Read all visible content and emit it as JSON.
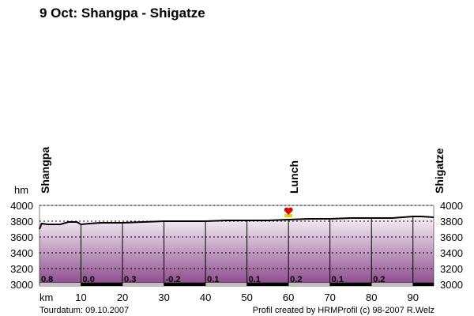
{
  "chart_data": {
    "type": "area",
    "title": "9 Oct: Shangpa - Shigatze",
    "y_label": "hm",
    "x_label": "km",
    "x": [
      0,
      0.5,
      2,
      5,
      7,
      9,
      10,
      12,
      15,
      20,
      25,
      30,
      35,
      40,
      45,
      50,
      55,
      60,
      65,
      70,
      75,
      80,
      85,
      90,
      92,
      95
    ],
    "values": [
      3700,
      3770,
      3760,
      3760,
      3790,
      3790,
      3760,
      3770,
      3780,
      3780,
      3790,
      3800,
      3800,
      3800,
      3810,
      3810,
      3810,
      3820,
      3830,
      3830,
      3840,
      3840,
      3840,
      3860,
      3860,
      3850
    ],
    "xlim": [
      0,
      95
    ],
    "ylim": [
      3000,
      4000
    ],
    "xticks": [
      10,
      20,
      30,
      40,
      50,
      60,
      70,
      80,
      90
    ],
    "yticks": [
      3000,
      3200,
      3400,
      3600,
      3800,
      4000
    ],
    "grid": true,
    "color": "#000000",
    "waypoints": [
      {
        "name": "Shangpa",
        "x": 0
      },
      {
        "name": "Lunch",
        "x": 60
      },
      {
        "name": "Shigatze",
        "x": 95
      }
    ],
    "gradient_labels": [
      "0.8",
      "0.0",
      "0.3",
      "-0.2",
      "0.1",
      "0.1",
      "0.2",
      "0.1",
      "0.2"
    ],
    "footer_left": "Tourdatum: 09.10.2007",
    "footer_right": "Profil created by HRMProfil (c) 98-2007 R.Welz"
  }
}
